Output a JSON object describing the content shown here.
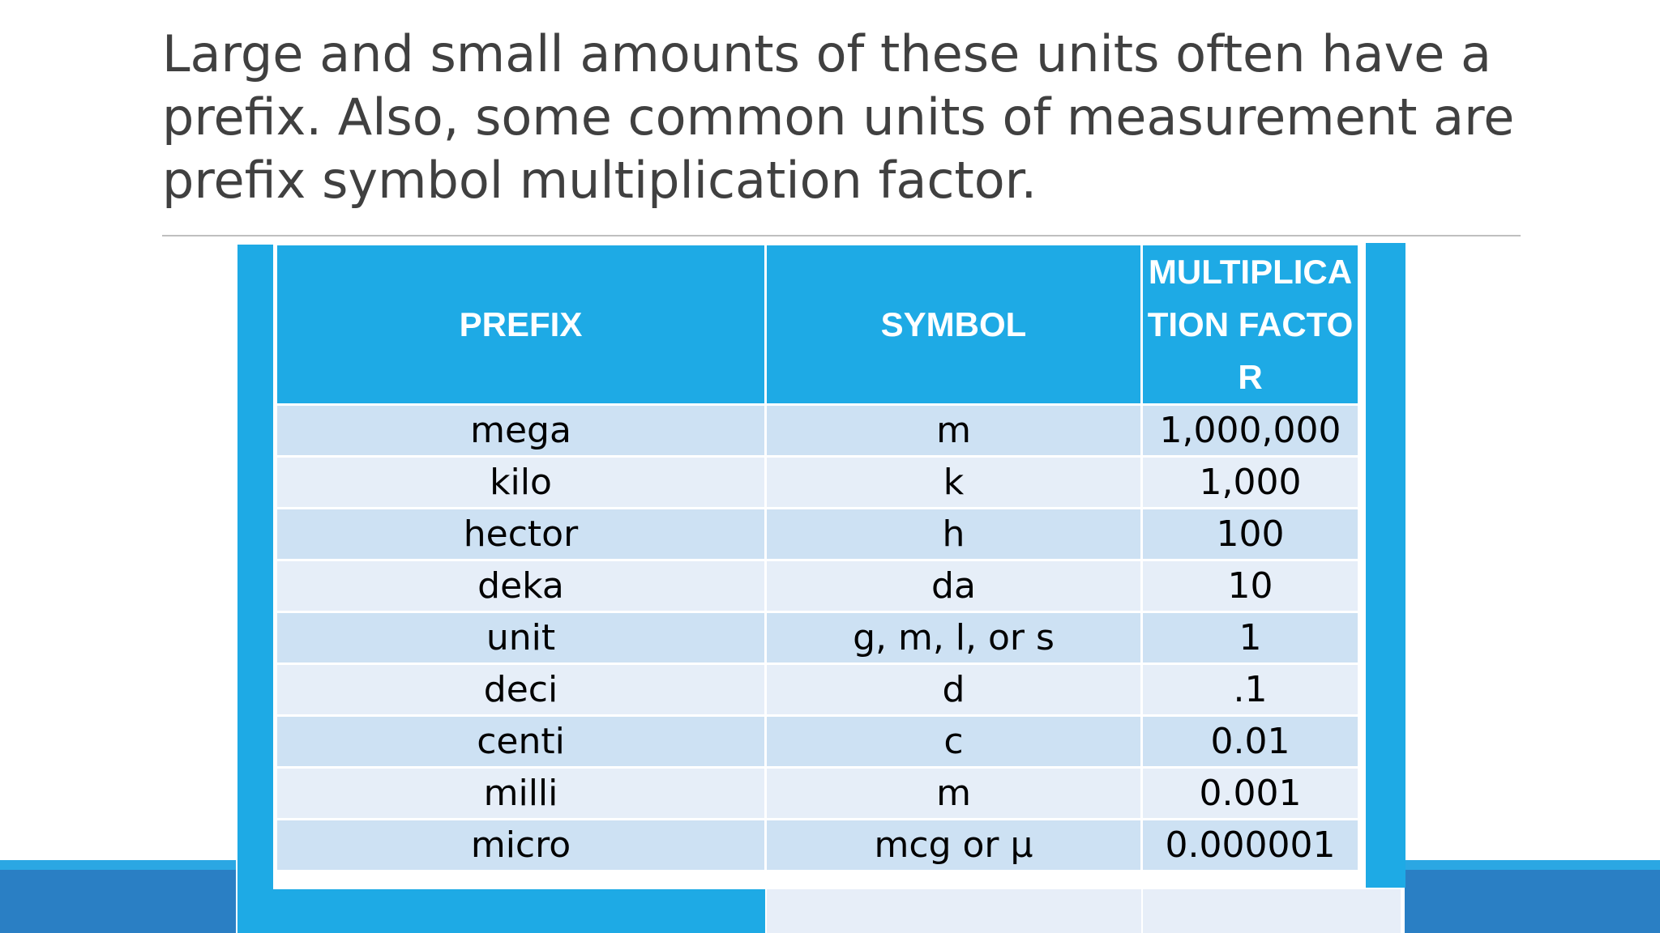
{
  "slide": {
    "title": "Large and small amounts of these units often have a prefix.  Also, some common units of measurement are prefix symbol multiplication factor."
  },
  "table": {
    "headers": {
      "prefix": "PREFIX",
      "symbol": "SYMBOL",
      "factor": "MULTIPLICATION FACTOR"
    },
    "rows": [
      {
        "prefix": "mega",
        "symbol": "m",
        "factor": "1,000,000"
      },
      {
        "prefix": "kilo",
        "symbol": "k",
        "factor": "1,000"
      },
      {
        "prefix": "hector",
        "symbol": "h",
        "factor": "100"
      },
      {
        "prefix": "deka",
        "symbol": "da",
        "factor": "10"
      },
      {
        "prefix": "unit",
        "symbol": "g, m, l, or s",
        "factor": "1"
      },
      {
        "prefix": "deci",
        "symbol": "d",
        "factor": ".1"
      },
      {
        "prefix": "centi",
        "symbol": "c",
        "factor": "0.01"
      },
      {
        "prefix": "milli",
        "symbol": "m",
        "factor": "0.001"
      },
      {
        "prefix": "micro",
        "symbol": "mcg or µ",
        "factor": "0.000001"
      }
    ]
  },
  "colors": {
    "header_blue": "#1eaae5",
    "row_odd": "#cde1f3",
    "row_even": "#e6eef8",
    "band_dark": "#2a7fc4"
  }
}
